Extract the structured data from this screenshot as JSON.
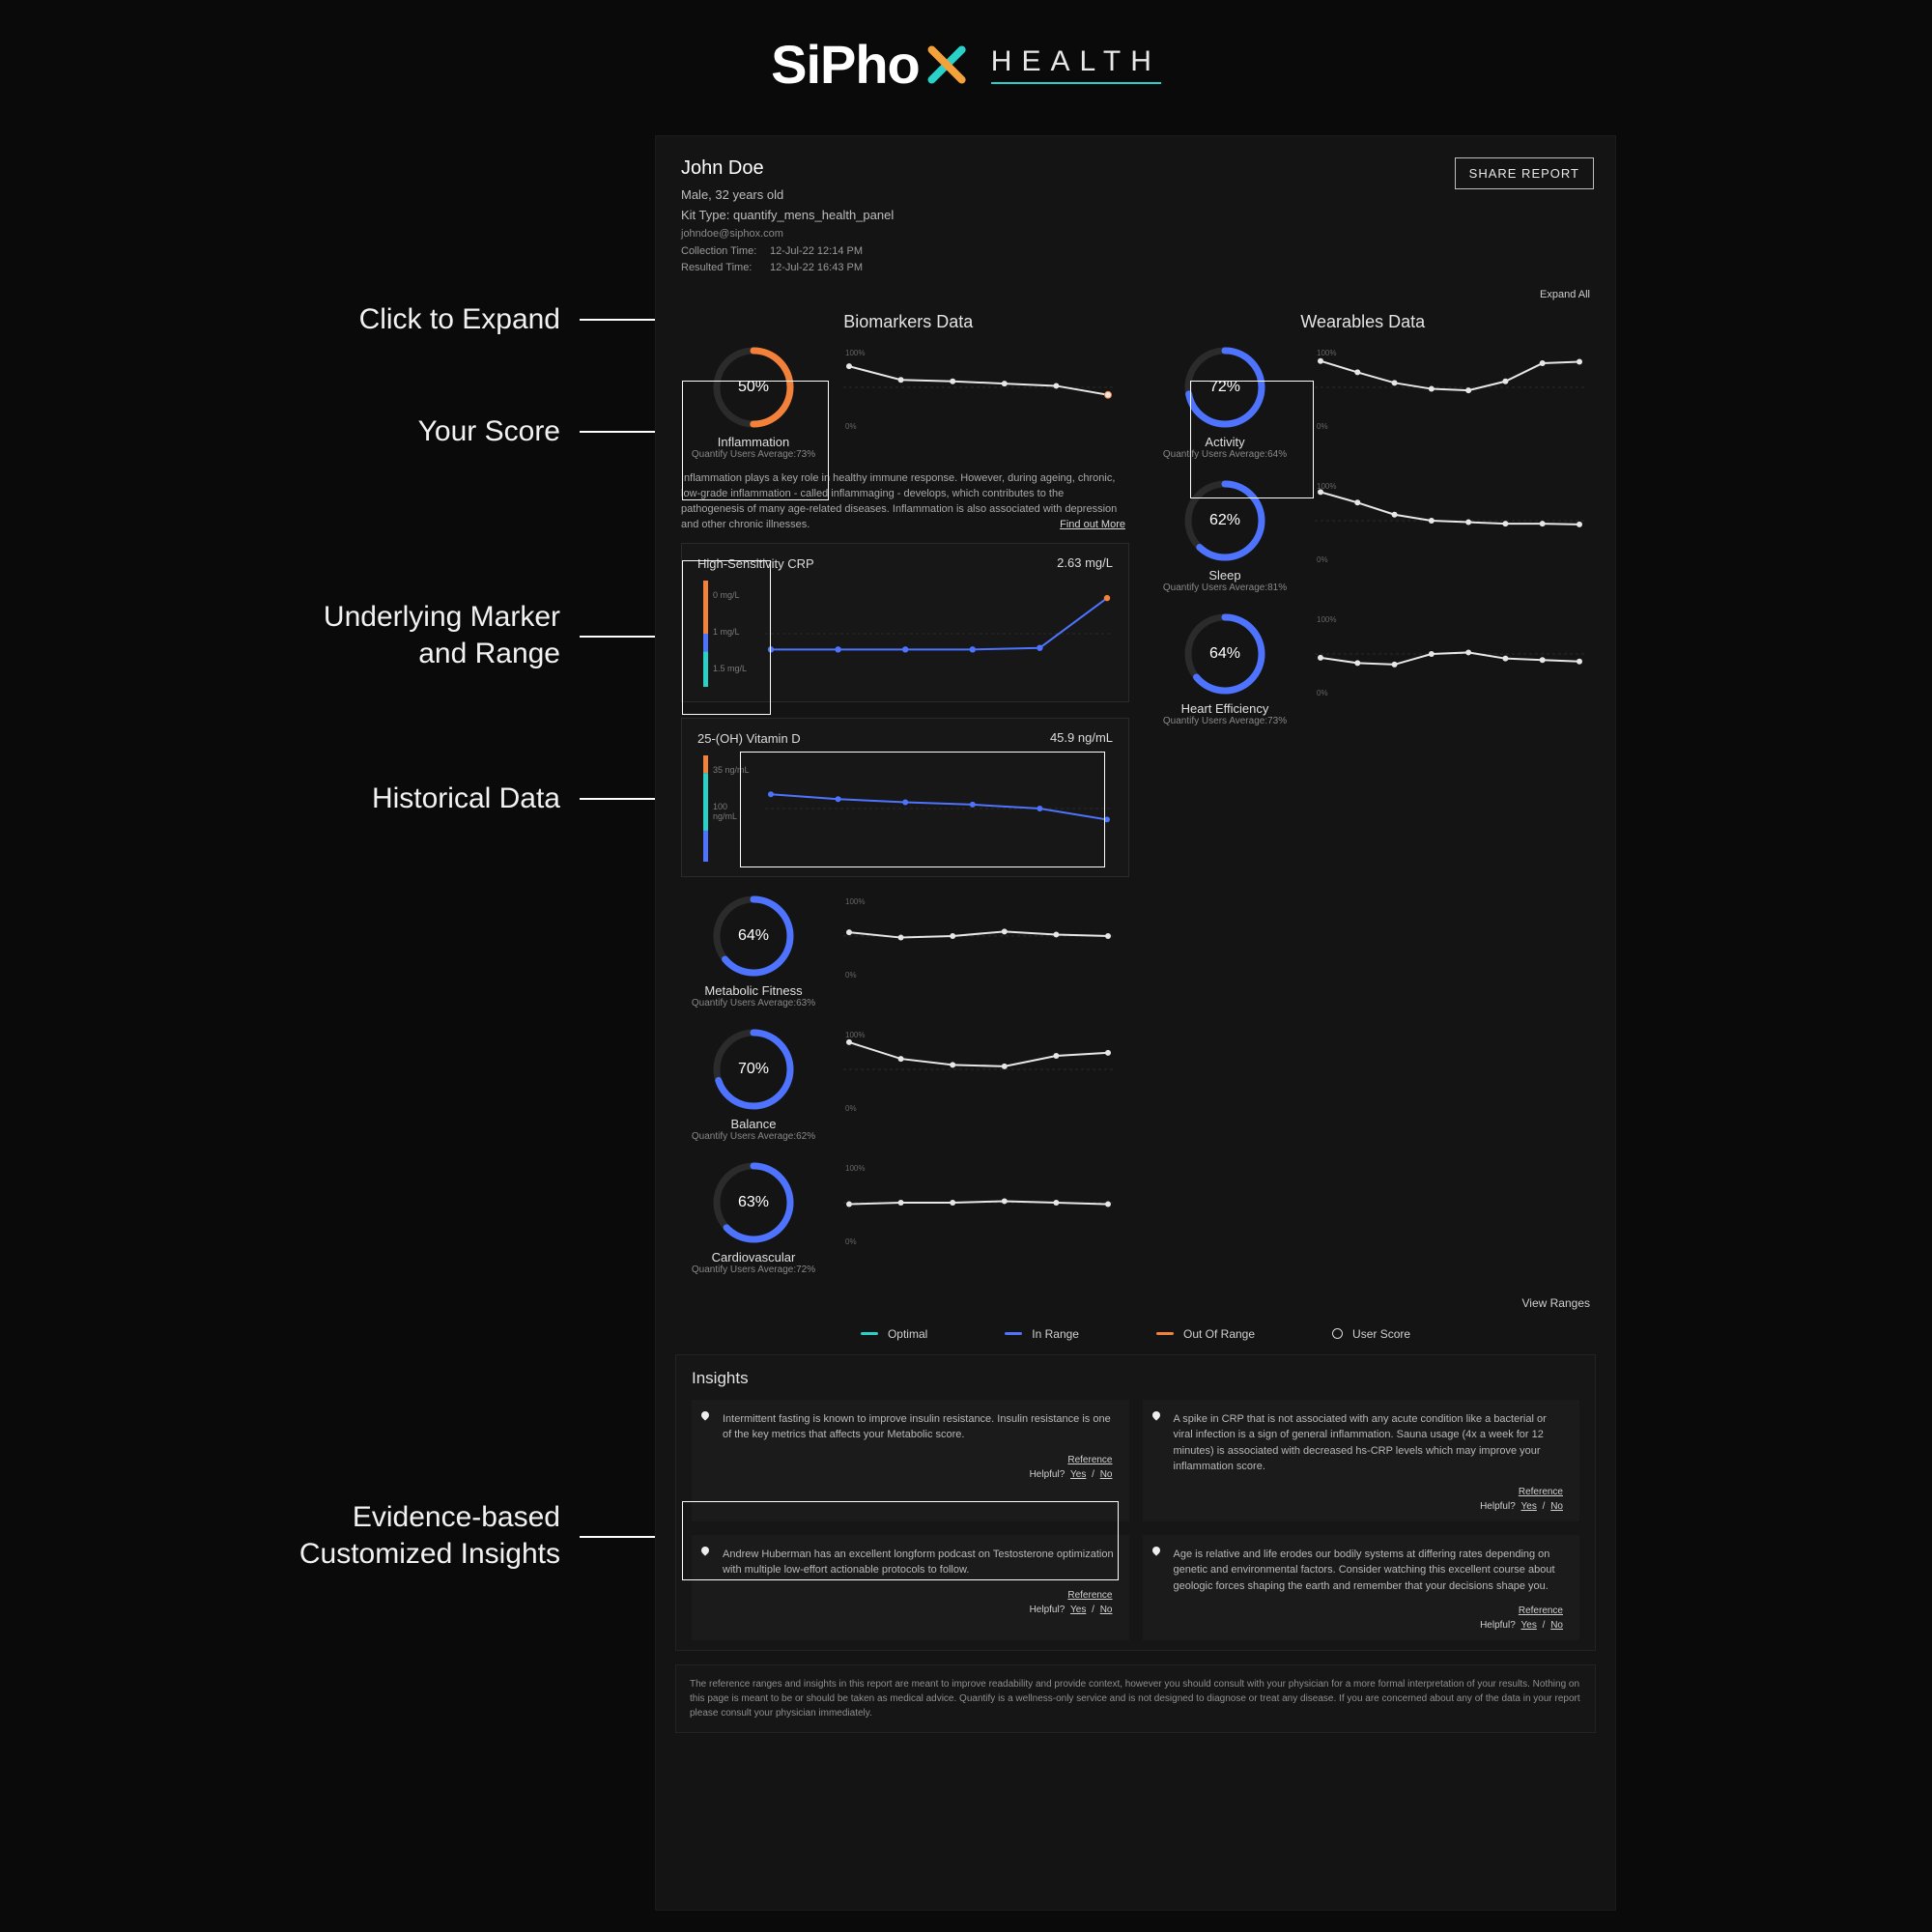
{
  "brand": {
    "word1": "SiPho",
    "word_health": "HEALTH"
  },
  "annotations": {
    "expand": "Click to Expand",
    "score": "Your Score",
    "marker": "Underlying Marker\nand Range",
    "history": "Historical Data",
    "insights": "Evidence-based\nCustomized Insights"
  },
  "user": {
    "name": "John Doe",
    "demo": "Male, 32 years old",
    "kit_prefix": "Kit Type: ",
    "kit": "quantify_mens_health_panel",
    "email": "johndoe@siphox.com",
    "collection_lbl": "Collection Time:",
    "collection_val": "12-Jul-22 12:14 PM",
    "resulted_lbl": "Resulted Time:",
    "resulted_val": "12-Jul-22 16:43 PM",
    "share": "SHARE REPORT"
  },
  "top": {
    "expand_all": "Expand All",
    "left_head": "Biomarkers Data",
    "right_head": "Wearables Data"
  },
  "colors": {
    "optimal": "#2ad1c9",
    "in_range": "#4e74ff",
    "out_of_range": "#f3813a",
    "user": "#e7e7e7",
    "grid": "#3a3a3a",
    "faint": "#2a2a2a",
    "text": "#d0d0d0"
  },
  "ring_track": "#2b2b2b",
  "scores_left": [
    {
      "id": "inflammation",
      "pct": 50,
      "label": "Inflammation",
      "avg": "Quantify Users Average:73%",
      "arc_color": "#f3813a",
      "series": {
        "ylim": [
          0,
          100
        ],
        "points": [
          78,
          60,
          58,
          55,
          52,
          40
        ],
        "last_out": true
      }
    },
    {
      "id": "metabolic",
      "pct": 64,
      "label": "Metabolic Fitness",
      "avg": "Quantify Users Average:63%",
      "arc_color": "#4e74ff",
      "series": {
        "ylim": [
          0,
          100
        ],
        "points": [
          55,
          48,
          50,
          56,
          52,
          50
        ]
      }
    },
    {
      "id": "balance",
      "pct": 70,
      "label": "Balance",
      "avg": "Quantify Users Average:62%",
      "arc_color": "#4e74ff",
      "series": {
        "ylim": [
          0,
          100
        ],
        "points": [
          86,
          64,
          56,
          54,
          68,
          72
        ]
      }
    },
    {
      "id": "cardio",
      "pct": 63,
      "label": "Cardiovascular",
      "avg": "Quantify Users Average:72%",
      "arc_color": "#4e74ff",
      "series": {
        "ylim": [
          0,
          100
        ],
        "points": [
          48,
          50,
          50,
          52,
          50,
          48
        ]
      }
    }
  ],
  "scores_right": [
    {
      "id": "activity",
      "pct": 72,
      "label": "Activity",
      "avg": "Quantify Users Average:64%",
      "arc_color": "#4e74ff",
      "series": {
        "ylim": [
          0,
          100
        ],
        "points": [
          85,
          70,
          56,
          48,
          46,
          58,
          82,
          84
        ]
      }
    },
    {
      "id": "sleep",
      "pct": 62,
      "label": "Sleep",
      "avg": "Quantify Users Average:81%",
      "arc_color": "#4e74ff",
      "series": {
        "ylim": [
          0,
          100
        ],
        "points": [
          88,
          74,
          58,
          50,
          48,
          46,
          46,
          45
        ]
      }
    },
    {
      "id": "heart",
      "pct": 64,
      "label": "Heart Efficiency",
      "avg": "Quantify Users Average:73%",
      "arc_color": "#4e74ff",
      "series": {
        "ylim": [
          0,
          100
        ],
        "points": [
          45,
          38,
          36,
          50,
          52,
          44,
          42,
          40
        ]
      }
    }
  ],
  "inflammation_blurb": "Inflammation plays a key role in healthy immune response. However, during ageing, chronic, low-grade inflammation - called inflammaging - develops, which contributes to the pathogenesis of many age-related diseases. Inflammation is also associated with depression and other chronic illnesses.",
  "find_more": "Find out More",
  "markers": [
    {
      "id": "hscrp",
      "title": "High-Sensitivity CRP",
      "value": "2.63 mg/L",
      "range": {
        "min": 0,
        "max": 3,
        "optimal_to": 1,
        "in_to": 1.5,
        "labels": [
          "0 mg/L",
          "1 mg/L",
          "1.5 mg/L"
        ]
      },
      "series": {
        "ylim": [
          0,
          3
        ],
        "points": [
          1.0,
          1.0,
          1.0,
          1.0,
          1.05,
          2.63
        ],
        "split_out": 5
      }
    },
    {
      "id": "vitd",
      "title": "25-(OH) Vitamin D",
      "value": "45.9 ng/mL",
      "range": {
        "min": 0,
        "max": 120,
        "optimal_from": 35,
        "optimal_to": 100,
        "labels": [
          "35 ng/mL",
          "100 ng/mL"
        ]
      },
      "series": {
        "ylim": [
          0,
          120
        ],
        "points": [
          78,
          72,
          68,
          65,
          60,
          46
        ]
      }
    }
  ],
  "view_ranges": "View Ranges",
  "legend": {
    "optimal": "Optimal",
    "in_range": "In Range",
    "out": "Out Of Range",
    "user": "User Score"
  },
  "insights": {
    "title": "Insights",
    "cards": [
      {
        "text": "Intermittent fasting is known to improve insulin resistance. Insulin resistance is one of the key metrics that affects your Metabolic score."
      },
      {
        "text": "A spike in CRP that is not associated with any acute condition like a bacterial or viral infection is a sign of general inflammation. Sauna usage (4x a week for 12 minutes) is associated with decreased hs-CRP levels which may improve your inflammation score."
      },
      {
        "text": "Andrew Huberman has an excellent longform podcast on Testosterone optimization with multiple low-effort actionable protocols to follow."
      },
      {
        "text": "Age is relative and life erodes our bodily systems at differing rates depending on genetic and environmental factors. Consider watching this excellent course about geologic forces shaping the earth and remember that your decisions shape you."
      }
    ],
    "reference": "Reference",
    "helpful": "Helpful?",
    "yes": "Yes",
    "no": "No",
    "sep": " / "
  },
  "disclaimer": "The reference ranges and insights in this report are meant to improve readability and provide context, however you should consult with your physician for a more formal interpretation of your results. Nothing on this page is meant to be or should be taken as medical advice. Quantify is a wellness-only service and is not designed to diagnose or treat any disease. If you are concerned about any of the data in your report please consult your physician immediately."
}
